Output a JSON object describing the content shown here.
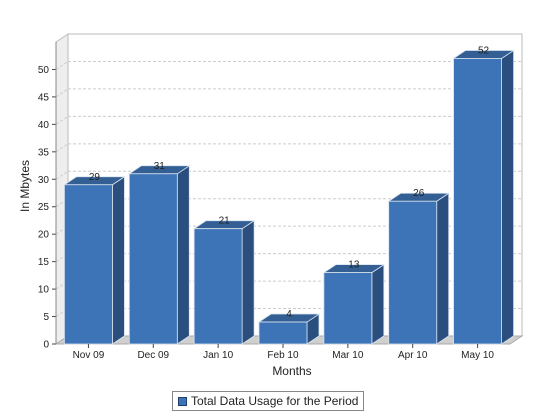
{
  "chart_data": {
    "type": "bar",
    "categories": [
      "Nov 09",
      "Dec 09",
      "Jan 10",
      "Feb 10",
      "Mar 10",
      "Apr 10",
      "May 10"
    ],
    "series": [
      {
        "name": "Total Data Usage for the Period",
        "values": [
          29,
          31,
          21,
          4,
          13,
          26,
          52
        ]
      }
    ],
    "data_labels": [
      "29",
      "31",
      "21",
      "4",
      "13",
      "26",
      "52"
    ],
    "xlabel": "Months",
    "ylabel": "In Mbytes",
    "ylim": [
      0,
      55
    ],
    "yticks": [
      0,
      5,
      10,
      15,
      20,
      25,
      30,
      35,
      40,
      45,
      50
    ],
    "grid": true,
    "legend_position": "bottom",
    "three_d": true,
    "colors": {
      "bar_front": "#3d74b8",
      "bar_top": "#345f94",
      "bar_side": "#2a4f7e",
      "bar_edge": "#d8e2ee",
      "wall": "#eeeeee",
      "floor": "#cfcfcf",
      "grid": "#cccccc"
    }
  }
}
